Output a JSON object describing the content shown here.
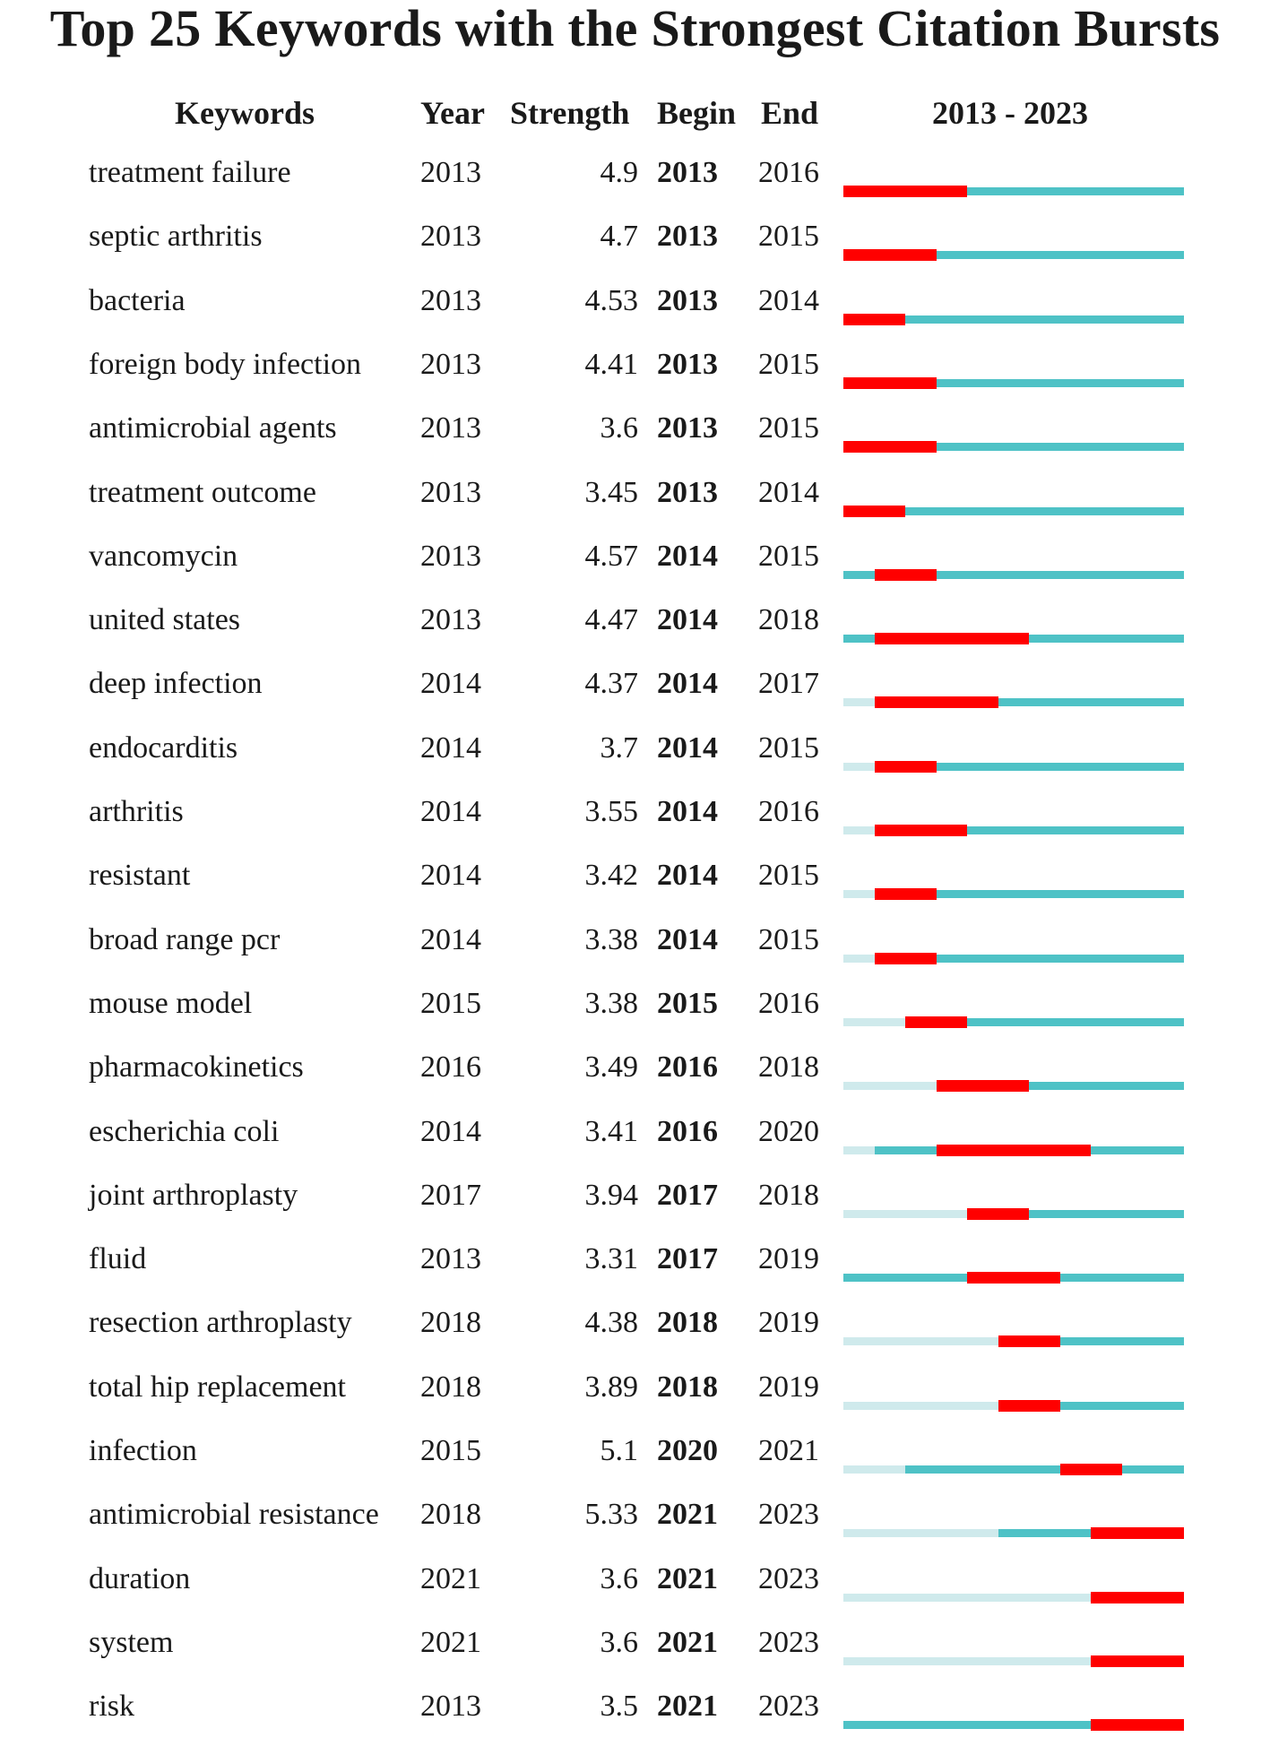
{
  "title": "Top 25 Keywords with the Strongest Citation Bursts",
  "headers": {
    "keywords": "Keywords",
    "year": "Year",
    "strength": "Strength",
    "begin": "Begin",
    "end": "End",
    "range": "2013 - 2023"
  },
  "colors": {
    "burst": "#ff0000",
    "active": "#4ec2c6",
    "inactive": "#cfeaec"
  },
  "chart_data": {
    "type": "table",
    "title": "Top 25 Keywords with the Strongest Citation Bursts",
    "timeline_range": [
      2013,
      2023
    ],
    "columns": [
      "Keywords",
      "Year",
      "Strength",
      "Begin",
      "End",
      "2013 - 2023"
    ],
    "rows": [
      {
        "keyword": "treatment failure",
        "year": "2013",
        "strength": "4.9",
        "begin": "2013",
        "end": "2016"
      },
      {
        "keyword": "septic arthritis",
        "year": "2013",
        "strength": "4.7",
        "begin": "2013",
        "end": "2015"
      },
      {
        "keyword": "bacteria",
        "year": "2013",
        "strength": "4.53",
        "begin": "2013",
        "end": "2014"
      },
      {
        "keyword": "foreign body infection",
        "year": "2013",
        "strength": "4.41",
        "begin": "2013",
        "end": "2015"
      },
      {
        "keyword": "antimicrobial agents",
        "year": "2013",
        "strength": "3.6",
        "begin": "2013",
        "end": "2015"
      },
      {
        "keyword": "treatment outcome",
        "year": "2013",
        "strength": "3.45",
        "begin": "2013",
        "end": "2014"
      },
      {
        "keyword": "vancomycin",
        "year": "2013",
        "strength": "4.57",
        "begin": "2014",
        "end": "2015"
      },
      {
        "keyword": "united states",
        "year": "2013",
        "strength": "4.47",
        "begin": "2014",
        "end": "2018"
      },
      {
        "keyword": "deep infection",
        "year": "2014",
        "strength": "4.37",
        "begin": "2014",
        "end": "2017"
      },
      {
        "keyword": "endocarditis",
        "year": "2014",
        "strength": "3.7",
        "begin": "2014",
        "end": "2015"
      },
      {
        "keyword": "arthritis",
        "year": "2014",
        "strength": "3.55",
        "begin": "2014",
        "end": "2016"
      },
      {
        "keyword": "resistant",
        "year": "2014",
        "strength": "3.42",
        "begin": "2014",
        "end": "2015"
      },
      {
        "keyword": "broad range pcr",
        "year": "2014",
        "strength": "3.38",
        "begin": "2014",
        "end": "2015"
      },
      {
        "keyword": "mouse model",
        "year": "2015",
        "strength": "3.38",
        "begin": "2015",
        "end": "2016"
      },
      {
        "keyword": "pharmacokinetics",
        "year": "2016",
        "strength": "3.49",
        "begin": "2016",
        "end": "2018"
      },
      {
        "keyword": "escherichia coli",
        "year": "2014",
        "strength": "3.41",
        "begin": "2016",
        "end": "2020"
      },
      {
        "keyword": "joint arthroplasty",
        "year": "2017",
        "strength": "3.94",
        "begin": "2017",
        "end": "2018"
      },
      {
        "keyword": "fluid",
        "year": "2013",
        "strength": "3.31",
        "begin": "2017",
        "end": "2019"
      },
      {
        "keyword": "resection arthroplasty",
        "year": "2018",
        "strength": "4.38",
        "begin": "2018",
        "end": "2019"
      },
      {
        "keyword": "total hip replacement",
        "year": "2018",
        "strength": "3.89",
        "begin": "2018",
        "end": "2019"
      },
      {
        "keyword": "infection",
        "year": "2015",
        "strength": "5.1",
        "begin": "2020",
        "end": "2021"
      },
      {
        "keyword": "antimicrobial resistance",
        "year": "2018",
        "strength": "5.33",
        "begin": "2021",
        "end": "2023"
      },
      {
        "keyword": "duration",
        "year": "2021",
        "strength": "3.6",
        "begin": "2021",
        "end": "2023"
      },
      {
        "keyword": "system",
        "year": "2021",
        "strength": "3.6",
        "begin": "2021",
        "end": "2023"
      },
      {
        "keyword": "risk",
        "year": "2013",
        "strength": "3.5",
        "begin": "2021",
        "end": "2023"
      }
    ]
  }
}
